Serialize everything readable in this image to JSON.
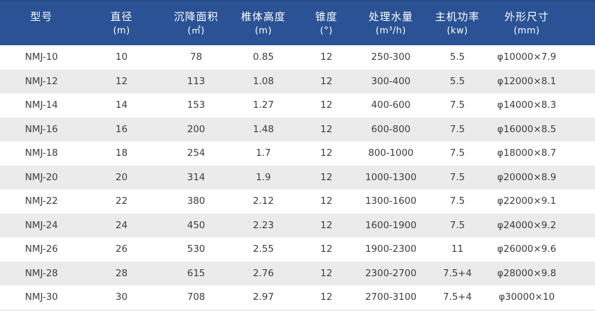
{
  "style": {
    "header_bg": "#2A5294",
    "header_top_border": "#254A86",
    "header_text_color": "#FFFFFF",
    "stripe_row_bg": "#EBEBEB",
    "plain_row_bg": "#FFFFFF",
    "body_text_color": "#3D3D3D"
  },
  "chart_data": {
    "type": "table",
    "title": "",
    "legend": null,
    "grid": "alternating-row-stripes",
    "columns": [
      {
        "key": "model",
        "label": "型号",
        "unit": ""
      },
      {
        "key": "diameter",
        "label": "直径",
        "unit": "(m)"
      },
      {
        "key": "settling-area",
        "label": "沉降面积",
        "unit": "(㎡)"
      },
      {
        "key": "cone-height",
        "label": "椎体高度",
        "unit": "(m)"
      },
      {
        "key": "taper",
        "label": "锥度",
        "unit": "(°)"
      },
      {
        "key": "water-capacity",
        "label": "处理水量",
        "unit": "(m³/h)"
      },
      {
        "key": "motor-power",
        "label": "主机功率",
        "unit": "(kw)"
      },
      {
        "key": "dimensions",
        "label": "外形尺寸",
        "unit": "(mm)"
      }
    ],
    "rows": [
      [
        "NMJ-10",
        "10",
        "78",
        "0.85",
        "12",
        "250-300",
        "5.5",
        "φ10000×7.9"
      ],
      [
        "NMJ-12",
        "12",
        "113",
        "1.08",
        "12",
        "300-400",
        "5.5",
        "φ12000×8.1"
      ],
      [
        "NMJ-14",
        "14",
        "153",
        "1.27",
        "12",
        "400-600",
        "7.5",
        "φ14000×8.3"
      ],
      [
        "NMJ-16",
        "16",
        "200",
        "1.48",
        "12",
        "600-800",
        "7.5",
        "φ16000×8.5"
      ],
      [
        "NMJ-18",
        "18",
        "254",
        "1.7",
        "12",
        "800-1000",
        "7.5",
        "φ18000×8.7"
      ],
      [
        "NMJ-20",
        "20",
        "314",
        "1.9",
        "12",
        "1000-1300",
        "7.5",
        "φ20000×8.9"
      ],
      [
        "NMJ-22",
        "22",
        "380",
        "2.12",
        "12",
        "1300-1600",
        "7.5",
        "φ22000×9.1"
      ],
      [
        "NMJ-24",
        "24",
        "450",
        "2.23",
        "12",
        "1600-1900",
        "7.5",
        "φ24000×9.2"
      ],
      [
        "NMJ-26",
        "26",
        "530",
        "2.55",
        "12",
        "1900-2300",
        "11",
        "φ26000×9.6"
      ],
      [
        "NMJ-28",
        "28",
        "615",
        "2.76",
        "12",
        "2300-2700",
        "7.5+4",
        "φ28000×9.8"
      ],
      [
        "NMJ-30",
        "30",
        "708",
        "2.97",
        "12",
        "2700-3100",
        "7.5+4",
        "φ30000×10"
      ]
    ]
  }
}
